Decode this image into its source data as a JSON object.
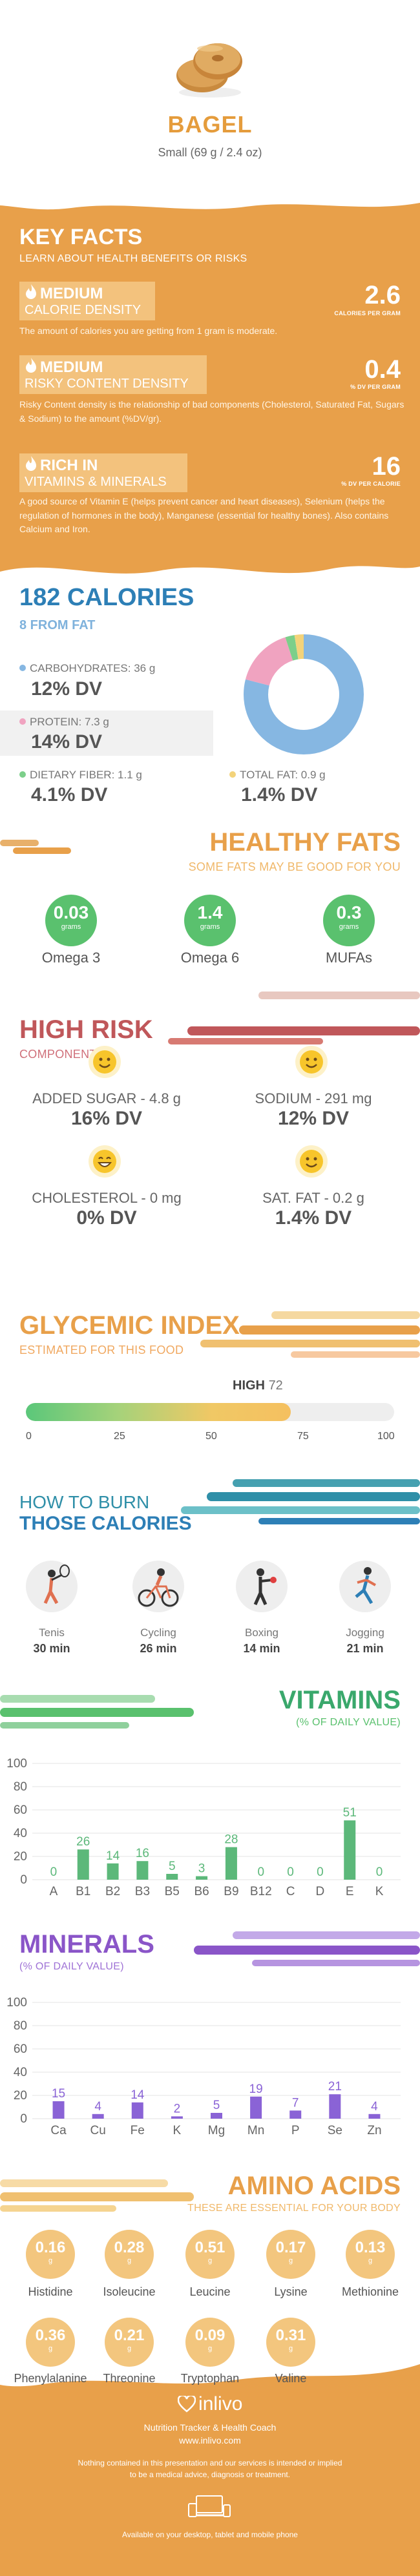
{
  "food": {
    "name": "BAGEL",
    "portion": "Small (69 g / 2.4 oz)"
  },
  "key_facts": {
    "title": "KEY FACTS",
    "subtitle": "LEARN ABOUT HEALTH BENEFITS OR RISKS",
    "rows": [
      {
        "level": "MEDIUM",
        "name": "CALORIE DENSITY",
        "value": "2.6",
        "unit": "CALORIES PER GRAM",
        "desc": "The amount of calories you are getting from 1 gram is moderate."
      },
      {
        "level": "MEDIUM",
        "name": "RISKY CONTENT DENSITY",
        "value": "0.4",
        "unit": "% DV PER GRAM",
        "desc": "Risky Content density is the relationship of bad components (Cholesterol, Saturated Fat, Sugars & Sodium) to the amount (%DV/gr)."
      },
      {
        "level": "RICH  IN",
        "name": "VITAMINS & MINERALS",
        "value": "16",
        "unit": "% DV PER CALORIE",
        "desc": "A good source of Vitamin E (helps prevent cancer and heart diseases), Selenium (helps the regulation of hormones in the body), Manganese (essential for healthy bones). Also contains Calcium and Iron."
      }
    ]
  },
  "calories": {
    "title": "182 CALORIES",
    "from_fat": "8 FROM FAT",
    "macros": [
      {
        "label": "CARBOHYDRATES: 36 g",
        "dv": "12% DV",
        "color": "#86b7e2"
      },
      {
        "label": "PROTEIN: 7.3 g",
        "dv": "14% DV",
        "color": "#f0a3c0"
      },
      {
        "label": "DIETARY FIBER: 1.1 g",
        "dv": "4.1% DV",
        "color": "#7ccf8a"
      },
      {
        "label": "TOTAL FAT: 0.9 g",
        "dv": "1.4% DV",
        "color": "#f3d37a"
      }
    ],
    "donut_shares": [
      0.79,
      0.16,
      0.025,
      0.025
    ]
  },
  "healthy_fats": {
    "title": "HEALTHY FATS",
    "subtitle": "SOME FATS MAY BE GOOD FOR YOU",
    "items": [
      {
        "value": "0.03",
        "unit": "grams",
        "name": "Omega 3"
      },
      {
        "value": "1.4",
        "unit": "grams",
        "name": "Omega 6"
      },
      {
        "value": "0.3",
        "unit": "grams",
        "name": "MUFAs"
      }
    ]
  },
  "high_risk": {
    "title": "HIGH RISK",
    "subtitle": "COMPONENTS",
    "items": [
      {
        "label": "ADDED SUGAR - 4.8 g",
        "dv": "16% DV",
        "face": "smile"
      },
      {
        "label": "SODIUM - 291 mg",
        "dv": "12% DV",
        "face": "smile"
      },
      {
        "label": "CHOLESTEROL - 0 mg",
        "dv": "0% DV",
        "face": "grin"
      },
      {
        "label": "SAT. FAT - 0.2 g",
        "dv": "1.4% DV",
        "face": "smile"
      }
    ]
  },
  "glycemic": {
    "title": "GLYCEMIC INDEX",
    "subtitle": "ESTIMATED FOR THIS FOOD",
    "level": "HIGH",
    "value": "72",
    "value_num": 72,
    "ticks": [
      "0",
      "25",
      "50",
      "75",
      "100"
    ]
  },
  "burn": {
    "title1": "HOW TO BURN",
    "title2": "THOSE CALORIES",
    "items": [
      {
        "name": "Tenis",
        "time": "30 min",
        "icon": "tennis-icon"
      },
      {
        "name": "Cycling",
        "time": "26 min",
        "icon": "cycling-icon"
      },
      {
        "name": "Boxing",
        "time": "14 min",
        "icon": "boxing-icon"
      },
      {
        "name": "Jogging",
        "time": "21 min",
        "icon": "jogging-icon"
      }
    ]
  },
  "vitamins": {
    "title": "VITAMINS",
    "subtitle": "(% OF DAILY VALUE)"
  },
  "minerals": {
    "title": "MINERALS",
    "subtitle": "(% OF DAILY VALUE)"
  },
  "chart_data": [
    {
      "type": "bar",
      "categories": [
        "A",
        "B1",
        "B2",
        "B3",
        "B5",
        "B6",
        "B9",
        "B12",
        "C",
        "D",
        "E",
        "K"
      ],
      "values": [
        0,
        26,
        14,
        16,
        5,
        3,
        28,
        0,
        0,
        0,
        51,
        0
      ],
      "labels": [
        "0",
        "26",
        "14",
        "16",
        "5",
        "3",
        "28",
        "0",
        "0",
        "0",
        "51",
        "0"
      ],
      "yticks": [
        "0",
        "20",
        "40",
        "60",
        "80",
        "100"
      ],
      "ylim": [
        0,
        100
      ],
      "color": "#5cb87a",
      "grid": true
    },
    {
      "type": "bar",
      "categories": [
        "Ca",
        "Cu",
        "Fe",
        "K",
        "Mg",
        "Mn",
        "P",
        "Se",
        "Zn"
      ],
      "values": [
        15,
        4,
        14,
        2,
        5,
        19,
        7,
        21,
        4
      ],
      "labels": [
        "15",
        "4",
        "14",
        "2",
        "5",
        "19",
        "7",
        "21",
        "4"
      ],
      "yticks": [
        "0",
        "20",
        "40",
        "60",
        "80",
        "100"
      ],
      "ylim": [
        0,
        100
      ],
      "color": "#8a63d6",
      "grid": true
    }
  ],
  "amino": {
    "title": "AMINO ACIDS",
    "subtitle": "THESE ARE ESSENTIAL FOR YOUR BODY",
    "items": [
      {
        "value": "0.16",
        "unit": "g",
        "name": "Histidine"
      },
      {
        "value": "0.28",
        "unit": "g",
        "name": "Isoleucine"
      },
      {
        "value": "0.51",
        "unit": "g",
        "name": "Leucine"
      },
      {
        "value": "0.17",
        "unit": "g",
        "name": "Lysine"
      },
      {
        "value": "0.13",
        "unit": "g",
        "name": "Methionine"
      },
      {
        "value": "0.36",
        "unit": "g",
        "name": "Phenylalanine"
      },
      {
        "value": "0.21",
        "unit": "g",
        "name": "Threonine"
      },
      {
        "value": "0.09",
        "unit": "g",
        "name": "Tryptophan"
      },
      {
        "value": "0.31",
        "unit": "g",
        "name": "Valine"
      }
    ]
  },
  "footer": {
    "brand": "inlivo",
    "tagline": "Nutrition Tracker & Health Coach",
    "url": "www.inlivo.com",
    "disclaimer1": "Nothing contained in this presentation and our services is intended or implied",
    "disclaimer2": "to be a medical advice, diagnosis or treatment.",
    "available": "Available on your desktop, tablet and mobile phone"
  },
  "colors": {
    "orange": "#e8a04a",
    "blue": "#2d7fb6",
    "green": "#5ac16e",
    "red": "#c0575a",
    "purple": "#8a55c8",
    "teal": "#45a0b0"
  }
}
